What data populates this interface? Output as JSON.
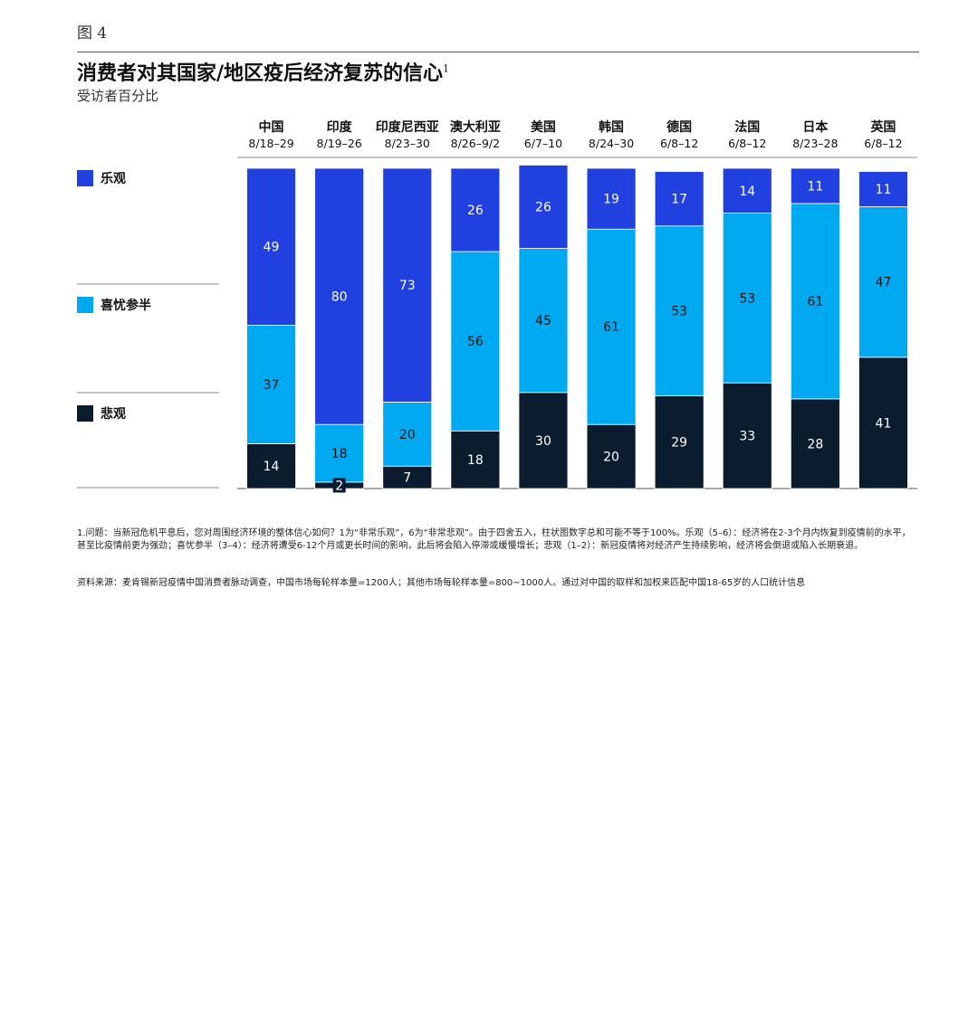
{
  "figure_label": "图 4",
  "title": "消费者对其国家/地区疫后经济复苏的信心",
  "title_note_marker": "1",
  "subtitle": "受访者百分比",
  "chart_data": {
    "type": "bar",
    "stacked": true,
    "categories": [
      "中国",
      "印度",
      "印度尼西亚",
      "澳大利亚",
      "美国",
      "韩国",
      "德国",
      "法国",
      "日本",
      "英国"
    ],
    "dates": [
      "8/18–29",
      "8/19–26",
      "8/23–30",
      "8/26–9/2",
      "6/7–10",
      "8/24–30",
      "6/8–12",
      "6/8–12",
      "8/23–28",
      "6/8–12"
    ],
    "series": [
      {
        "name": "乐观",
        "color": "#2040e0",
        "values": [
          49,
          80,
          73,
          26,
          26,
          19,
          17,
          14,
          11,
          11
        ]
      },
      {
        "name": "喜忧参半",
        "color": "#00a9f0",
        "values": [
          37,
          18,
          20,
          56,
          45,
          61,
          53,
          53,
          61,
          47
        ]
      },
      {
        "name": "悲观",
        "color": "#0b1c2e",
        "values": [
          14,
          2,
          7,
          18,
          30,
          20,
          29,
          33,
          28,
          41
        ]
      }
    ],
    "legend_position": "left"
  },
  "footnote": "1.问题：当新冠危机平息后，您对周围经济环境的整体信心如何？1为“非常乐观”，6为“非常悲观”。由于四舍五入，柱状图数字总和可能不等于100%。乐观（5–6）：经济将在2-3个月内恢复到疫情前的水平，甚至比疫情前更为强劲；喜忧参半（3–4）：经济将遭受6-12个月或更长时间的影响，此后将会陷入停滞或缓慢增长；悲观（1–2）：新冠疫情将对经济产生持续影响，经济将会倒退或陷入长期衰退。",
  "source": "资料来源：麦肯锡新冠疫情中国消费者脉动调查，中国市场每轮样本量=1200人；其他市场每轮样本量=800~1000人。通过对中国的取样和加权来匹配中国18-65岁的人口统计信息"
}
